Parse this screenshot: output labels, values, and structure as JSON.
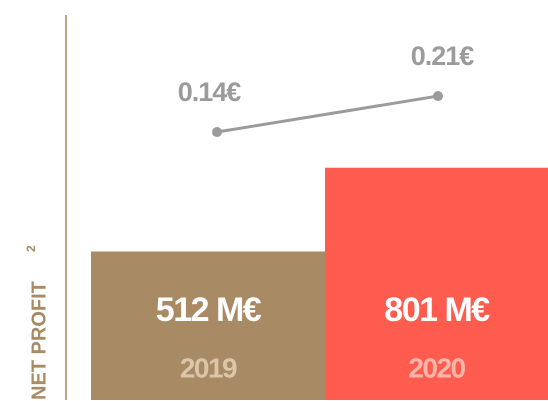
{
  "chart_data": {
    "type": "bar",
    "y_label": "NET PROFIT",
    "y_label_note": "2",
    "categories": [
      "2019",
      "2020"
    ],
    "bars": {
      "values": [
        512,
        801
      ],
      "value_labels": [
        "512 M€",
        "801 M€"
      ],
      "colors": [
        "#a88a64",
        "#fd5c4f"
      ],
      "category_colors": [
        "#dcc6aa",
        "#ffb6aa"
      ]
    },
    "line": {
      "values": [
        0.14,
        0.21
      ],
      "value_labels": [
        "0.14€",
        "0.21€"
      ],
      "color": "#9b9b9b"
    }
  }
}
